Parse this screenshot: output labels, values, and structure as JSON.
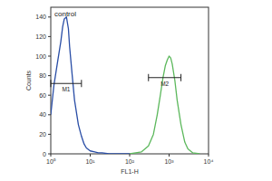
{
  "chart_data": {
    "type": "line",
    "title": "control",
    "x_label": "FL1-H",
    "y_label": "Counts",
    "log": "x",
    "xlim": [
      1,
      10000
    ],
    "xticks": [
      {
        "value": 1,
        "label": "10⁰"
      },
      {
        "value": 10,
        "label": "10¹"
      },
      {
        "value": 100,
        "label": "10²"
      },
      {
        "value": 1000,
        "label": "10³"
      },
      {
        "value": 10000,
        "label": "10⁴"
      }
    ],
    "ylim": [
      0,
      150
    ],
    "yticks": [
      0,
      20,
      40,
      60,
      80,
      100,
      120,
      140
    ],
    "series": [
      {
        "color": "#2a4ea6",
        "x": [
          1,
          1.2,
          1.5,
          1.8,
          2,
          2.2,
          2.5,
          2.8,
          3,
          3.5,
          4,
          5,
          6,
          7,
          8,
          10,
          13,
          16,
          20,
          30,
          50,
          100
        ],
        "values": [
          40,
          70,
          95,
          115,
          130,
          138,
          140,
          128,
          110,
          80,
          55,
          30,
          18,
          10,
          6,
          3,
          2,
          1,
          1,
          0,
          0,
          0
        ]
      },
      {
        "color": "#5cb85c",
        "x": [
          100,
          200,
          300,
          400,
          500,
          600,
          700,
          800,
          900,
          1000,
          1100,
          1200,
          1400,
          1600,
          2000,
          2500,
          3000,
          4000,
          6000
        ],
        "values": [
          0,
          2,
          8,
          20,
          40,
          60,
          78,
          90,
          96,
          100,
          98,
          92,
          75,
          55,
          30,
          12,
          5,
          1,
          0
        ]
      }
    ],
    "markers": [
      {
        "label": "M1",
        "x": [
          1,
          6
        ],
        "y": 72
      },
      {
        "label": "M2",
        "x": [
          300,
          2000
        ],
        "y": 78
      }
    ]
  }
}
